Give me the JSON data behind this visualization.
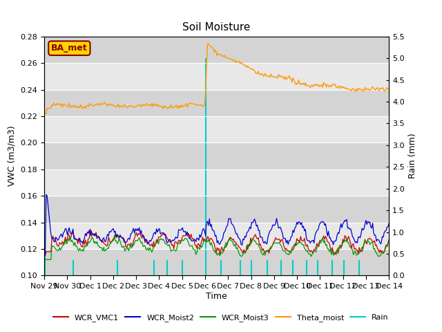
{
  "title": "Soil Moisture",
  "ylabel_left": "VWC (m3/m3)",
  "ylabel_right": "Rain (mm)",
  "xlabel": "Time",
  "annotation": "BA_met",
  "ylim_left": [
    0.1,
    0.28
  ],
  "ylim_right": [
    0.0,
    5.5
  ],
  "yticks_left": [
    0.1,
    0.12,
    0.14,
    0.16,
    0.18,
    0.2,
    0.22,
    0.24,
    0.26,
    0.28
  ],
  "yticks_right": [
    0.0,
    0.5,
    1.0,
    1.5,
    2.0,
    2.5,
    3.0,
    3.5,
    4.0,
    4.5,
    5.0,
    5.5
  ],
  "legend_labels": [
    "WCR_VMC1",
    "WCR_Moist2",
    "WCR_Moist3",
    "Theta_moist",
    "Rain"
  ],
  "colors": {
    "wcr_vmc1": "#cc0000",
    "wcr_moist2": "#0000cc",
    "wcr_moist3": "#009900",
    "theta_moist": "#ff9900",
    "rain": "#00cccc"
  },
  "bg_color": "#e8e8e8",
  "fig_color": "#ffffff",
  "band_color": "#cccccc",
  "annotation_fg": "#8B0000",
  "annotation_bg": "#FFD700",
  "annotation_border": "#8B0000"
}
